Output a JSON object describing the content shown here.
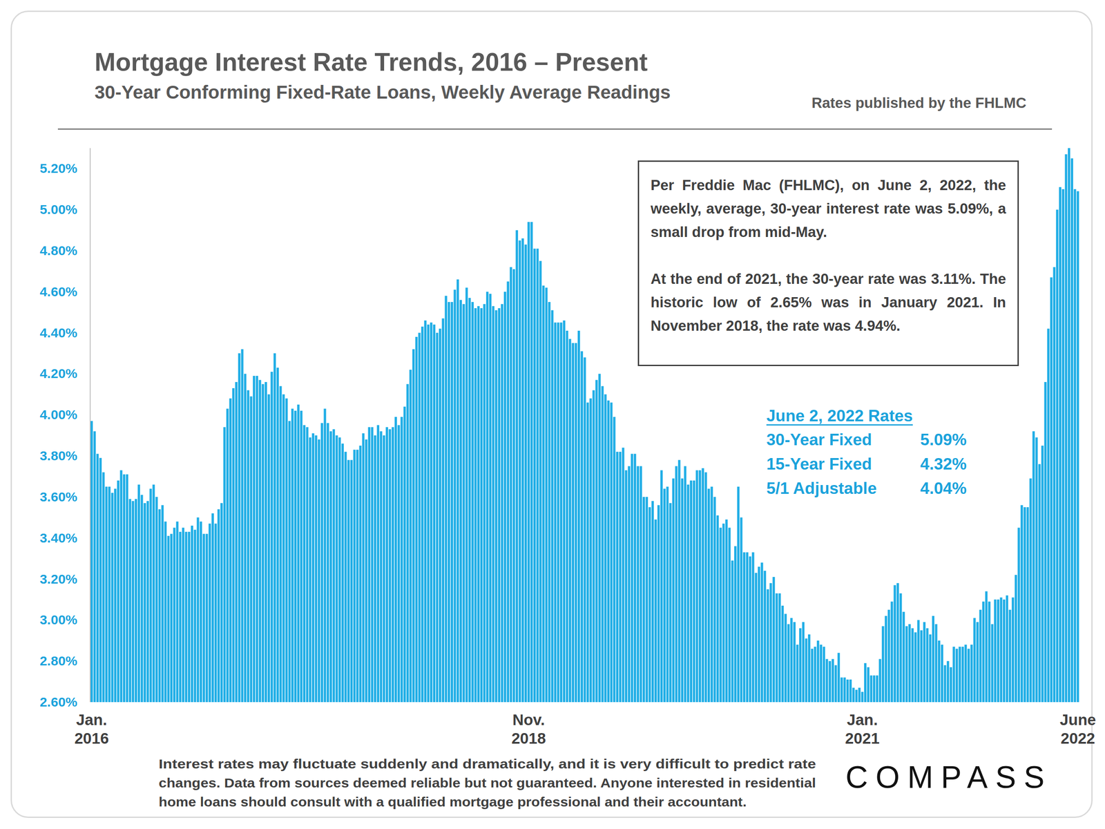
{
  "chart_data": {
    "type": "bar",
    "title": "Mortgage Interest Rate Trends, 2016 – Present",
    "subtitle": "30-Year Conforming Fixed-Rate Loans, Weekly Average Readings",
    "source": "Rates published by the FHLMC",
    "annotations": [
      "Per Freddie Mac (FHLMC), on June 2, 2022, the weekly, average, 30-year interest rate was 5.09%, a small drop from mid-May.",
      "At the end of 2021, the 30-year rate was 3.11%. The historic low of 2.65% was in January 2021. In November 2018, the rate was 4.94%."
    ],
    "rates_table": {
      "title": "June 2, 2022 Rates",
      "rows": [
        [
          "30-Year Fixed",
          "5.09%"
        ],
        [
          "15-Year Fixed",
          "4.32%"
        ],
        [
          "5/1 Adjustable",
          "4.04%"
        ]
      ]
    },
    "footnote": [
      "Interest rates may fluctuate suddenly and dramatically, and it is very difficult to predict rate",
      "changes. Data from sources deemed reliable but not guaranteed. Anyone interested in residential",
      "home loans should consult with a qualified mortgage professional and their accountant."
    ],
    "logo": "COMPASS",
    "color": "#21aee6",
    "grid": false,
    "ylim": [
      2.6,
      5.3
    ],
    "yticks": [
      {
        "value": 2.6,
        "label": "2.60%"
      },
      {
        "value": 2.8,
        "label": "2.80%"
      },
      {
        "value": 3.0,
        "label": "3.00%"
      },
      {
        "value": 3.2,
        "label": "3.20%"
      },
      {
        "value": 3.4,
        "label": "3.40%"
      },
      {
        "value": 3.6,
        "label": "3.60%"
      },
      {
        "value": 3.8,
        "label": "3.80%"
      },
      {
        "value": 4.0,
        "label": "4.00%"
      },
      {
        "value": 4.2,
        "label": "4.20%"
      },
      {
        "value": 4.4,
        "label": "4.40%"
      },
      {
        "value": 4.6,
        "label": "4.60%"
      },
      {
        "value": 4.8,
        "label": "4.80%"
      },
      {
        "value": 5.0,
        "label": "5.00%"
      },
      {
        "value": 5.2,
        "label": "5.20%"
      }
    ],
    "categories": [
      "Jan.\n2016",
      null,
      null,
      null,
      null,
      null,
      null,
      null,
      null,
      null,
      null,
      null,
      null,
      null,
      null,
      null,
      null,
      null,
      null,
      null,
      null,
      null,
      null,
      null,
      null,
      null,
      null,
      null,
      null,
      null,
      null,
      null,
      null,
      null,
      null,
      null,
      null,
      null,
      null,
      null,
      null,
      null,
      null,
      null,
      null,
      null,
      null,
      null,
      null,
      null,
      null,
      null,
      null,
      null,
      null,
      null,
      null,
      null,
      null,
      null,
      null,
      null,
      null,
      null,
      null,
      null,
      null,
      null,
      null,
      null,
      null,
      null,
      null,
      null,
      null,
      null,
      null,
      null,
      null,
      null,
      null,
      null,
      null,
      null,
      null,
      null,
      null,
      null,
      null,
      null,
      null,
      null,
      null,
      null,
      null,
      null,
      null,
      null,
      null,
      null,
      null,
      null,
      null,
      null,
      null,
      null,
      null,
      null,
      null,
      null,
      null,
      null,
      null,
      null,
      null,
      null,
      null,
      null,
      null,
      null,
      null,
      null,
      null,
      null,
      null,
      null,
      null,
      null,
      null,
      null,
      null,
      null,
      null,
      null,
      null,
      null,
      null,
      null,
      null,
      null,
      null,
      null,
      null,
      null,
      null,
      null,
      null,
      null,
      "Nov.\n2018",
      null,
      null,
      null,
      null,
      null,
      null,
      null,
      null,
      null,
      null,
      null,
      null,
      null,
      null,
      null,
      null,
      null,
      null,
      null,
      null,
      null,
      null,
      null,
      null,
      null,
      null,
      null,
      null,
      null,
      null,
      null,
      null,
      null,
      null,
      null,
      null,
      null,
      null,
      null,
      null,
      null,
      null,
      null,
      null,
      null,
      null,
      null,
      null,
      null,
      null,
      null,
      null,
      null,
      null,
      null,
      null,
      null,
      null,
      null,
      null,
      null,
      null,
      null,
      null,
      null,
      null,
      null,
      null,
      null,
      null,
      null,
      null,
      null,
      null,
      null,
      null,
      null,
      null,
      null,
      null,
      null,
      null,
      null,
      null,
      null,
      null,
      null,
      null,
      null,
      null,
      null,
      null,
      null,
      null,
      null,
      null,
      null,
      null,
      null,
      null,
      null,
      null,
      null,
      null,
      null,
      null,
      null,
      null,
      null,
      null,
      null,
      null,
      "Jan.\n2021",
      null,
      null,
      null,
      null,
      null,
      null,
      null,
      null,
      null,
      null,
      null,
      null,
      null,
      null,
      null,
      null,
      null,
      null,
      null,
      null,
      null,
      null,
      null,
      null,
      null,
      null,
      null,
      null,
      null,
      null,
      null,
      null,
      null,
      null,
      null,
      null,
      null,
      null,
      null,
      null,
      null,
      null,
      null,
      null,
      null,
      null,
      null,
      null,
      null,
      null,
      null,
      null,
      null,
      null,
      null,
      null,
      null,
      null,
      null,
      null,
      null,
      null,
      null,
      null,
      null,
      null,
      null,
      null,
      null,
      null,
      null,
      null,
      "June\n2022"
    ],
    "values": [
      3.97,
      3.92,
      3.81,
      3.79,
      3.72,
      3.65,
      3.65,
      3.62,
      3.64,
      3.68,
      3.73,
      3.71,
      3.71,
      3.59,
      3.58,
      3.59,
      3.66,
      3.61,
      3.57,
      3.58,
      3.64,
      3.66,
      3.6,
      3.54,
      3.56,
      3.48,
      3.41,
      3.42,
      3.45,
      3.48,
      3.43,
      3.45,
      3.43,
      3.43,
      3.46,
      3.44,
      3.5,
      3.48,
      3.42,
      3.42,
      3.47,
      3.52,
      3.47,
      3.54,
      3.57,
      3.94,
      4.03,
      4.08,
      4.13,
      4.16,
      4.3,
      4.32,
      4.2,
      4.12,
      4.09,
      4.19,
      4.19,
      4.17,
      4.15,
      4.16,
      4.1,
      4.21,
      4.3,
      4.23,
      4.14,
      4.1,
      4.08,
      3.97,
      4.03,
      4.02,
      4.05,
      4.02,
      3.95,
      3.94,
      3.89,
      3.91,
      3.9,
      3.88,
      3.96,
      4.03,
      3.96,
      3.92,
      3.93,
      3.9,
      3.89,
      3.86,
      3.82,
      3.78,
      3.78,
      3.83,
      3.83,
      3.85,
      3.91,
      3.88,
      3.94,
      3.94,
      3.9,
      3.95,
      3.92,
      3.9,
      3.94,
      3.93,
      3.94,
      3.99,
      3.95,
      3.99,
      4.04,
      4.15,
      4.22,
      4.32,
      4.38,
      4.4,
      4.43,
      4.46,
      4.44,
      4.45,
      4.44,
      4.4,
      4.42,
      4.47,
      4.58,
      4.55,
      4.55,
      4.61,
      4.66,
      4.56,
      4.54,
      4.62,
      4.57,
      4.55,
      4.52,
      4.53,
      4.52,
      4.54,
      4.6,
      4.59,
      4.53,
      4.51,
      4.52,
      4.54,
      4.6,
      4.65,
      4.72,
      4.71,
      4.9,
      4.85,
      4.86,
      4.83,
      4.94,
      4.94,
      4.81,
      4.81,
      4.75,
      4.63,
      4.62,
      4.55,
      4.51,
      4.45,
      4.45,
      4.45,
      4.46,
      4.41,
      4.37,
      4.35,
      4.35,
      4.41,
      4.31,
      4.28,
      4.06,
      4.08,
      4.12,
      4.17,
      4.2,
      4.14,
      4.1,
      4.07,
      4.06,
      3.99,
      3.82,
      3.82,
      3.84,
      3.73,
      3.75,
      3.81,
      3.81,
      3.75,
      3.75,
      3.6,
      3.6,
      3.55,
      3.58,
      3.49,
      3.56,
      3.73,
      3.64,
      3.65,
      3.57,
      3.69,
      3.75,
      3.78,
      3.69,
      3.75,
      3.66,
      3.68,
      3.68,
      3.73,
      3.73,
      3.74,
      3.72,
      3.64,
      3.65,
      3.6,
      3.51,
      3.45,
      3.47,
      3.49,
      3.45,
      3.29,
      3.36,
      3.65,
      3.5,
      3.33,
      3.33,
      3.31,
      3.33,
      3.23,
      3.26,
      3.28,
      3.24,
      3.15,
      3.18,
      3.21,
      3.13,
      3.13,
      3.07,
      3.03,
      2.98,
      3.01,
      2.99,
      2.88,
      2.96,
      2.99,
      2.91,
      2.93,
      2.86,
      2.87,
      2.9,
      2.88,
      2.87,
      2.81,
      2.8,
      2.81,
      2.78,
      2.84,
      2.72,
      2.72,
      2.71,
      2.71,
      2.67,
      2.66,
      2.67,
      2.65,
      2.79,
      2.77,
      2.73,
      2.73,
      2.73,
      2.81,
      2.97,
      3.02,
      3.05,
      3.09,
      3.17,
      3.18,
      3.13,
      3.04,
      2.97,
      2.98,
      2.96,
      2.94,
      3.0,
      2.95,
      2.99,
      2.96,
      2.93,
      3.02,
      2.98,
      2.9,
      2.88,
      2.78,
      2.8,
      2.77,
      2.87,
      2.86,
      2.87,
      2.87,
      2.88,
      2.86,
      2.88,
      3.01,
      2.99,
      3.05,
      3.09,
      3.14,
      3.09,
      2.98,
      3.1,
      3.1,
      3.11,
      3.1,
      3.12,
      3.05,
      3.11,
      3.22,
      3.45,
      3.56,
      3.55,
      3.55,
      3.69,
      3.92,
      3.89,
      3.76,
      3.85,
      4.16,
      4.42,
      4.67,
      4.72,
      5.0,
      5.11,
      5.1,
      5.27,
      5.3,
      5.25,
      5.1,
      5.09
    ]
  }
}
